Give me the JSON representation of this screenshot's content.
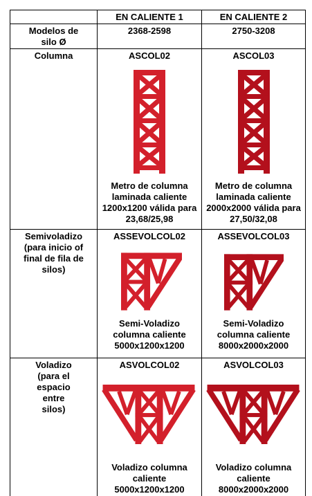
{
  "table": {
    "header": [
      "EN CALIENTE 1",
      "EN CALIENTE 2"
    ],
    "rows": [
      {
        "label": "Modelos de silo Ø",
        "cells": [
          "2368-2598",
          "2750-3208"
        ]
      },
      {
        "label": "Columna",
        "cells": [
          {
            "code": "ASCOL02",
            "description": "Metro de columna laminada caliente 1200x1200 válida para 23,68/25,98"
          },
          {
            "code": "ASCOL03",
            "description": "Metro de columna laminada caliente 2000x2000 válida para 27,50/32,08"
          }
        ]
      },
      {
        "label": "Semivoladizo (para inicio of final de fila de silos)",
        "cells": [
          {
            "code": "ASSEVOLCOL02",
            "description": "Semi-Voladizo columna caliente 5000x1200x1200"
          },
          {
            "code": "ASSEVOLCOL03",
            "description": "Semi-Voladizo columna caliente 8000x2000x2000"
          }
        ]
      },
      {
        "label": "Voladizo (para el espacio entre silos)",
        "cells": [
          {
            "code": "ASVOLCOL02",
            "description": "Voladizo columna caliente 5000x1200x1200"
          },
          {
            "code": "ASVOLCOL03",
            "description": "Voladizo columna caliente 8000x2000x2000"
          }
        ]
      }
    ]
  }
}
